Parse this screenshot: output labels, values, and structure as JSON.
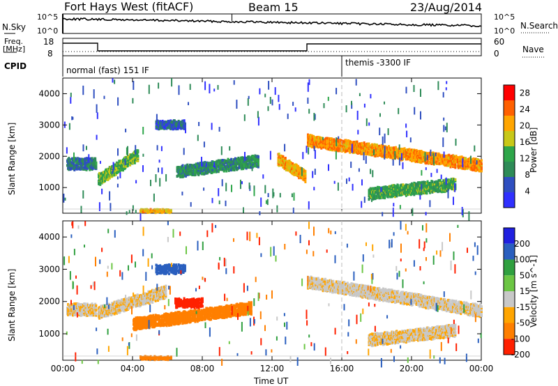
{
  "header": {
    "station": "Fort Hays West (fitACF)",
    "beam": "Beam 15",
    "date": "23/Aug/2014"
  },
  "aux_panels": {
    "nsky_label": "N.Sky",
    "nsky_ticks": [
      "10^5",
      "10^0"
    ],
    "nsearch_label": "N.Search",
    "freq_label_1": "Freq.",
    "freq_label_2": "[MHz]",
    "freq_ticks": [
      "18",
      "8"
    ],
    "nave_ticks": [
      "60",
      "0"
    ],
    "nave_label": "Nave",
    "cpid_label": "CPID",
    "modes": [
      {
        "name": "normal (fast) 151 IF",
        "start": "00:00"
      },
      {
        "name": "themis -3300 IF",
        "start": "16:00"
      }
    ]
  },
  "colors": {
    "power": [
      "#3030ff",
      "#2f4fc0",
      "#2e8b57",
      "#2ea64a",
      "#c8c818",
      "#ffa500",
      "#ff6000",
      "#ff0000"
    ],
    "velocity": [
      "#2020e0",
      "#2a5fbf",
      "#30a040",
      "#6cc644",
      "#c8c8c8",
      "#ffa500",
      "#ff7f00",
      "#ff2000"
    ]
  },
  "chart_data": [
    {
      "type": "heatmap",
      "title": "",
      "xlabel": "",
      "ylabel": "Slant Range [km]",
      "xlim": [
        "00:00",
        "24:00"
      ],
      "ylim": [
        180,
        4500
      ],
      "yticks": [
        1000,
        2000,
        3000,
        4000
      ],
      "colorbar": {
        "label": "Power [dB]",
        "ticks": [
          4,
          8,
          12,
          16,
          20,
          24,
          28
        ],
        "range": [
          0,
          30
        ]
      },
      "features": [
        {
          "desc": "band",
          "t_start": 0.2,
          "t_end": 1.9,
          "range_start": 1750,
          "range_end": 1750,
          "value": 8
        },
        {
          "desc": "band",
          "t_start": 2.0,
          "t_end": 4.3,
          "range_start": 1250,
          "range_end": 2050,
          "value": 14
        },
        {
          "desc": "band",
          "t_start": 6.5,
          "t_end": 11.2,
          "range_start": 1500,
          "range_end": 1850,
          "value": 10
        },
        {
          "desc": "patch",
          "t_start": 5.3,
          "t_end": 7.0,
          "range_start": 3000,
          "range_end": 3000,
          "value": 6
        },
        {
          "desc": "band",
          "t_start": 12.3,
          "t_end": 13.9,
          "range_start": 1900,
          "range_end": 1350,
          "value": 20
        },
        {
          "desc": "band",
          "t_start": 14.0,
          "t_end": 24.0,
          "range_start": 2500,
          "range_end": 1700,
          "value": 22
        },
        {
          "desc": "band",
          "t_start": 17.5,
          "t_end": 22.5,
          "range_start": 800,
          "range_end": 1100,
          "value": 12
        },
        {
          "desc": "ground",
          "t_start": 4.4,
          "t_end": 6.2,
          "range_start": 250,
          "range_end": 250,
          "value": 20
        }
      ]
    },
    {
      "type": "heatmap",
      "title": "",
      "xlabel": "Time UT",
      "ylabel": "Slant Range [km]",
      "xlim": [
        "00:00",
        "24:00"
      ],
      "xticks": [
        "00:00",
        "04:00",
        "08:00",
        "12:00",
        "16:00",
        "20:00",
        "00:00"
      ],
      "ylim": [
        180,
        4500
      ],
      "yticks": [
        1000,
        2000,
        3000,
        4000
      ],
      "colorbar": {
        "label": "Velocity [m s^-1]",
        "ticks": [
          200,
          100,
          50,
          15,
          -15,
          -50,
          -100,
          -200
        ],
        "range": [
          -250,
          250
        ]
      },
      "features": [
        {
          "desc": "band",
          "t_start": 0.2,
          "t_end": 1.9,
          "range_start": 1750,
          "range_end": 1750,
          "value": -10
        },
        {
          "desc": "band",
          "t_start": 2.0,
          "t_end": 5.9,
          "range_start": 1650,
          "range_end": 2300,
          "value": -10
        },
        {
          "desc": "band",
          "t_start": 4.0,
          "t_end": 10.8,
          "range_start": 1300,
          "range_end": 1800,
          "value": -80
        },
        {
          "desc": "patch",
          "t_start": 6.4,
          "t_end": 8.0,
          "range_start": 1950,
          "range_end": 1950,
          "value": -230
        },
        {
          "desc": "patch",
          "t_start": 5.3,
          "t_end": 7.0,
          "range_start": 3000,
          "range_end": 3000,
          "value": 150
        },
        {
          "desc": "band",
          "t_start": 14.0,
          "t_end": 24.0,
          "range_start": 2600,
          "range_end": 1700,
          "value": -5
        },
        {
          "desc": "band",
          "t_start": 17.5,
          "t_end": 22.5,
          "range_start": 800,
          "range_end": 1100,
          "value": -10
        },
        {
          "desc": "ground",
          "t_start": 4.4,
          "t_end": 6.2,
          "range_start": 250,
          "range_end": 250,
          "value": -80
        }
      ]
    }
  ]
}
